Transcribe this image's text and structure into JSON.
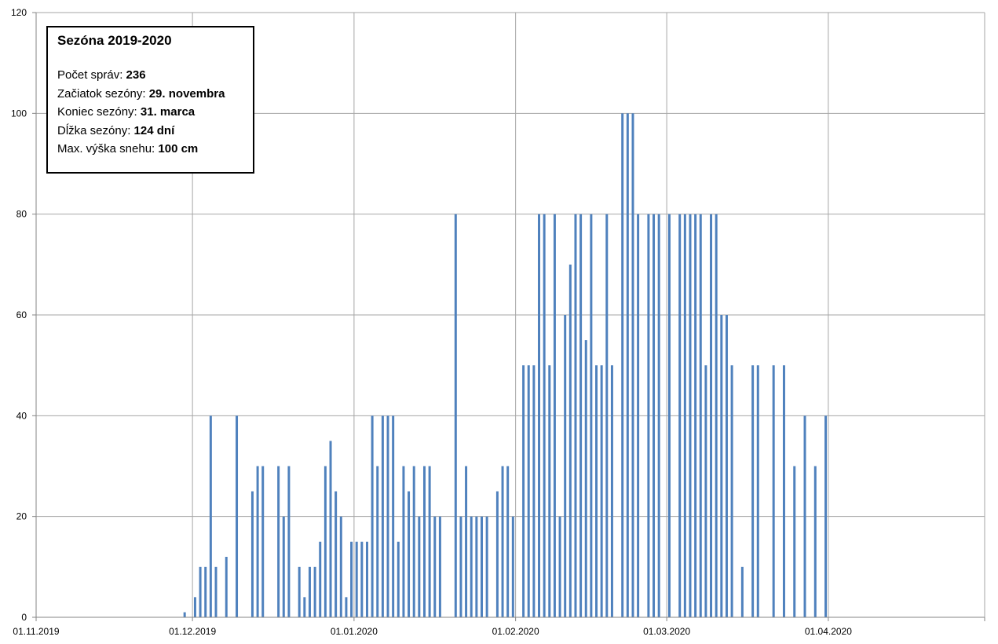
{
  "colors": {
    "bar": "#4f81bd",
    "grid": "#a6a6a6",
    "axis": "#868686"
  },
  "info": {
    "title": "Sezóna 2019-2020",
    "rows": [
      {
        "label": "Počet správ: ",
        "value": "236"
      },
      {
        "label": "Začiatok sezóny: ",
        "value": "29. novembra"
      },
      {
        "label": "Koniec sezóny: ",
        "value": "31. marca"
      },
      {
        "label": "Dĺžka sezóny: ",
        "value": "124 dní"
      },
      {
        "label": "Max. výška snehu: ",
        "value": "100 cm"
      }
    ]
  },
  "chart_data": {
    "type": "bar",
    "title": "",
    "xlabel": "",
    "ylabel": "",
    "ylim": [
      0,
      120
    ],
    "xlim": [
      "2019-11-01",
      "2020-05-01"
    ],
    "y_ticks": [
      0,
      20,
      40,
      60,
      80,
      100,
      120
    ],
    "x_ticks": [
      {
        "date": "2019-11-01",
        "label": "01.11.2019"
      },
      {
        "date": "2019-12-01",
        "label": "01.12.2019"
      },
      {
        "date": "2020-01-01",
        "label": "01.01.2020"
      },
      {
        "date": "2020-02-01",
        "label": "01.02.2020"
      },
      {
        "date": "2020-03-01",
        "label": "01.03.2020"
      },
      {
        "date": "2020-04-01",
        "label": "01.04.2020"
      }
    ],
    "grid": true,
    "series": [
      {
        "points": [
          [
            "2019-11-29",
            1
          ],
          [
            "2019-12-01",
            4
          ],
          [
            "2019-12-02",
            10
          ],
          [
            "2019-12-03",
            10
          ],
          [
            "2019-12-04",
            40
          ],
          [
            "2019-12-05",
            10
          ],
          [
            "2019-12-07",
            12
          ],
          [
            "2019-12-09",
            40
          ],
          [
            "2019-12-12",
            25
          ],
          [
            "2019-12-13",
            30
          ],
          [
            "2019-12-14",
            30
          ],
          [
            "2019-12-17",
            30
          ],
          [
            "2019-12-18",
            20
          ],
          [
            "2019-12-19",
            30
          ],
          [
            "2019-12-21",
            10
          ],
          [
            "2019-12-22",
            4
          ],
          [
            "2019-12-23",
            10
          ],
          [
            "2019-12-24",
            10
          ],
          [
            "2019-12-25",
            15
          ],
          [
            "2019-12-26",
            30
          ],
          [
            "2019-12-27",
            35
          ],
          [
            "2019-12-28",
            25
          ],
          [
            "2019-12-29",
            20
          ],
          [
            "2019-12-30",
            4
          ],
          [
            "2019-12-31",
            15
          ],
          [
            "2020-01-01",
            15
          ],
          [
            "2020-01-02",
            15
          ],
          [
            "2020-01-03",
            15
          ],
          [
            "2020-01-04",
            40
          ],
          [
            "2020-01-05",
            30
          ],
          [
            "2020-01-06",
            40
          ],
          [
            "2020-01-07",
            40
          ],
          [
            "2020-01-08",
            40
          ],
          [
            "2020-01-09",
            15
          ],
          [
            "2020-01-10",
            30
          ],
          [
            "2020-01-11",
            25
          ],
          [
            "2020-01-12",
            30
          ],
          [
            "2020-01-13",
            20
          ],
          [
            "2020-01-14",
            30
          ],
          [
            "2020-01-15",
            30
          ],
          [
            "2020-01-16",
            20
          ],
          [
            "2020-01-17",
            20
          ],
          [
            "2020-01-20",
            80
          ],
          [
            "2020-01-21",
            20
          ],
          [
            "2020-01-22",
            30
          ],
          [
            "2020-01-23",
            20
          ],
          [
            "2020-01-24",
            20
          ],
          [
            "2020-01-25",
            20
          ],
          [
            "2020-01-26",
            20
          ],
          [
            "2020-01-28",
            25
          ],
          [
            "2020-01-29",
            30
          ],
          [
            "2020-01-30",
            30
          ],
          [
            "2020-01-31",
            20
          ],
          [
            "2020-02-02",
            50
          ],
          [
            "2020-02-03",
            50
          ],
          [
            "2020-02-04",
            50
          ],
          [
            "2020-02-05",
            80
          ],
          [
            "2020-02-06",
            80
          ],
          [
            "2020-02-07",
            50
          ],
          [
            "2020-02-08",
            80
          ],
          [
            "2020-02-09",
            20
          ],
          [
            "2020-02-10",
            60
          ],
          [
            "2020-02-11",
            70
          ],
          [
            "2020-02-12",
            80
          ],
          [
            "2020-02-13",
            80
          ],
          [
            "2020-02-14",
            55
          ],
          [
            "2020-02-15",
            80
          ],
          [
            "2020-02-16",
            50
          ],
          [
            "2020-02-17",
            50
          ],
          [
            "2020-02-18",
            80
          ],
          [
            "2020-02-19",
            50
          ],
          [
            "2020-02-21",
            100
          ],
          [
            "2020-02-22",
            100
          ],
          [
            "2020-02-23",
            100
          ],
          [
            "2020-02-24",
            80
          ],
          [
            "2020-02-26",
            80
          ],
          [
            "2020-02-27",
            80
          ],
          [
            "2020-02-28",
            80
          ],
          [
            "2020-03-01",
            80
          ],
          [
            "2020-03-03",
            80
          ],
          [
            "2020-03-04",
            80
          ],
          [
            "2020-03-05",
            80
          ],
          [
            "2020-03-06",
            80
          ],
          [
            "2020-03-07",
            80
          ],
          [
            "2020-03-08",
            50
          ],
          [
            "2020-03-09",
            80
          ],
          [
            "2020-03-10",
            80
          ],
          [
            "2020-03-11",
            60
          ],
          [
            "2020-03-12",
            60
          ],
          [
            "2020-03-13",
            50
          ],
          [
            "2020-03-15",
            10
          ],
          [
            "2020-03-17",
            50
          ],
          [
            "2020-03-18",
            50
          ],
          [
            "2020-03-21",
            50
          ],
          [
            "2020-03-23",
            50
          ],
          [
            "2020-03-25",
            30
          ],
          [
            "2020-03-27",
            40
          ],
          [
            "2020-03-29",
            30
          ],
          [
            "2020-03-31",
            40
          ]
        ]
      }
    ]
  }
}
